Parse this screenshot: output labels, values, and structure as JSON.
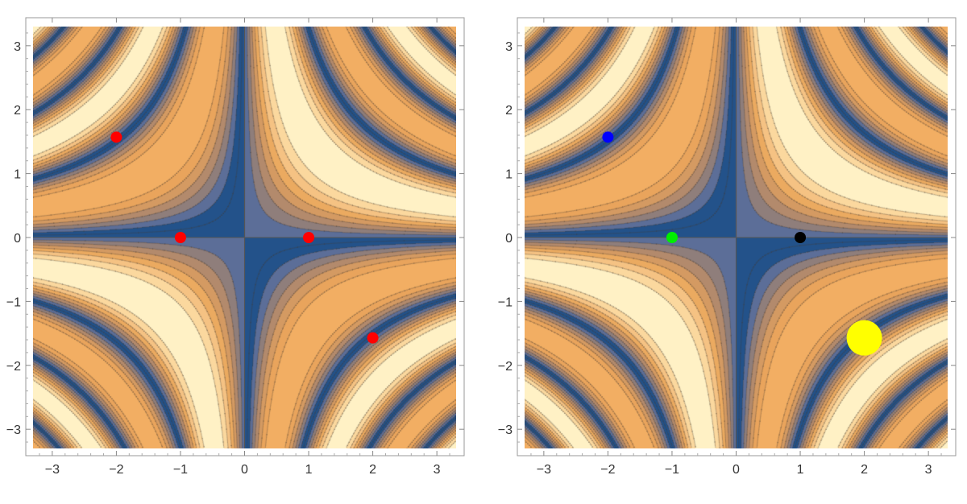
{
  "chart_data": [
    {
      "type": "contour",
      "title": "",
      "xlabel": "",
      "ylabel": "",
      "xlim": [
        -3.3,
        3.3
      ],
      "ylim": [
        -3.3,
        3.3
      ],
      "x_ticks": [
        -3,
        -2,
        -1,
        0,
        1,
        2,
        3
      ],
      "y_ticks": [
        -3,
        -2,
        -1,
        0,
        1,
        2,
        3
      ],
      "x_tick_labels": [
        "−3",
        "−2",
        "−1",
        "0",
        "1",
        "2",
        "3"
      ],
      "y_tick_labels": [
        "−3",
        "−2",
        "−1",
        "0",
        "1",
        "2",
        "3"
      ],
      "contour_bands": [
        "#f2ae63",
        "#e9a45c",
        "#d49a62",
        "#b38a6c",
        "#8f7e7b",
        "#5c6e98",
        "#23528a",
        "#23528a",
        "#5c6e98",
        "#8f7e7b",
        "#b38a6c",
        "#d49a62",
        "#ebaa60",
        "#f5c283",
        "#fbd89e",
        "#fff1c5"
      ],
      "points": [
        {
          "x": -2,
          "y": 1.57,
          "color": "#ff0000",
          "size": "normal"
        },
        {
          "x": -1,
          "y": 0,
          "color": "#ff0000",
          "size": "normal"
        },
        {
          "x": 1,
          "y": 0,
          "color": "#ff0000",
          "size": "normal"
        },
        {
          "x": 2,
          "y": -1.57,
          "color": "#ff0000",
          "size": "normal"
        }
      ]
    },
    {
      "type": "contour",
      "title": "",
      "xlabel": "",
      "ylabel": "",
      "xlim": [
        -3.3,
        3.3
      ],
      "ylim": [
        -3.3,
        3.3
      ],
      "x_ticks": [
        -3,
        -2,
        -1,
        0,
        1,
        2,
        3
      ],
      "y_ticks": [
        -3,
        -2,
        -1,
        0,
        1,
        2,
        3
      ],
      "x_tick_labels": [
        "−3",
        "−2",
        "−1",
        "0",
        "1",
        "2",
        "3"
      ],
      "y_tick_labels": [
        "−3",
        "−2",
        "−1",
        "0",
        "1",
        "2",
        "3"
      ],
      "contour_bands": [
        "#f2ae63",
        "#e9a45c",
        "#d49a62",
        "#b38a6c",
        "#8f7e7b",
        "#5c6e98",
        "#23528a",
        "#23528a",
        "#5c6e98",
        "#8f7e7b",
        "#b38a6c",
        "#d49a62",
        "#ebaa60",
        "#f5c283",
        "#fbd89e",
        "#fff1c5"
      ],
      "points": [
        {
          "x": -2,
          "y": 1.57,
          "color": "#0000ff",
          "size": "normal"
        },
        {
          "x": -1,
          "y": 0,
          "color": "#00ee00",
          "size": "normal"
        },
        {
          "x": 1,
          "y": 0,
          "color": "#000000",
          "size": "normal"
        },
        {
          "x": 2,
          "y": -1.57,
          "color": "#ffff00",
          "size": "large"
        }
      ]
    }
  ]
}
